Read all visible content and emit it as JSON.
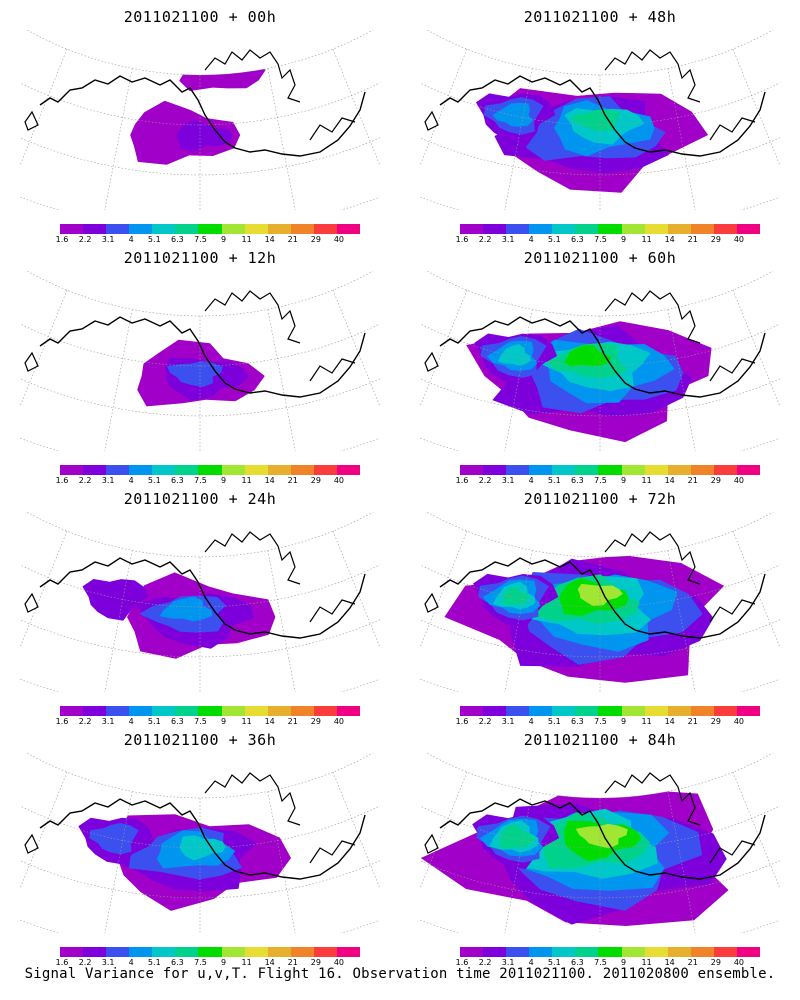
{
  "panels": [
    {
      "title": "2011021100 + 00h",
      "level": 0
    },
    {
      "title": "2011021100 + 48h",
      "level": 4
    },
    {
      "title": "2011021100 + 12h",
      "level": 1
    },
    {
      "title": "2011021100 + 60h",
      "level": 5
    },
    {
      "title": "2011021100 + 24h",
      "level": 2
    },
    {
      "title": "2011021100 + 72h",
      "level": 6
    },
    {
      "title": "2011021100 + 36h",
      "level": 3
    },
    {
      "title": "2011021100 + 84h",
      "level": 7
    }
  ],
  "colorbar": {
    "labels": [
      "1.6",
      "2.2",
      "3.1",
      "4",
      "5.1",
      "6.3",
      "7.5",
      "9",
      "11",
      "14",
      "21",
      "29",
      "40"
    ],
    "colors": [
      "#a000c8",
      "#7d00dc",
      "#3c50f0",
      "#0096f0",
      "#00c8c8",
      "#00d28c",
      "#00dc00",
      "#a0e632",
      "#e6dc32",
      "#e6af2d",
      "#f08228",
      "#fa3c3c",
      "#f00082"
    ]
  },
  "colors": {
    "coast": "#000000",
    "grid": "#999999",
    "background": "#ffffff"
  },
  "caption": "Signal Variance for u,v,T. Flight 16. Observation time 2011021100. 2011020800 ensemble."
}
